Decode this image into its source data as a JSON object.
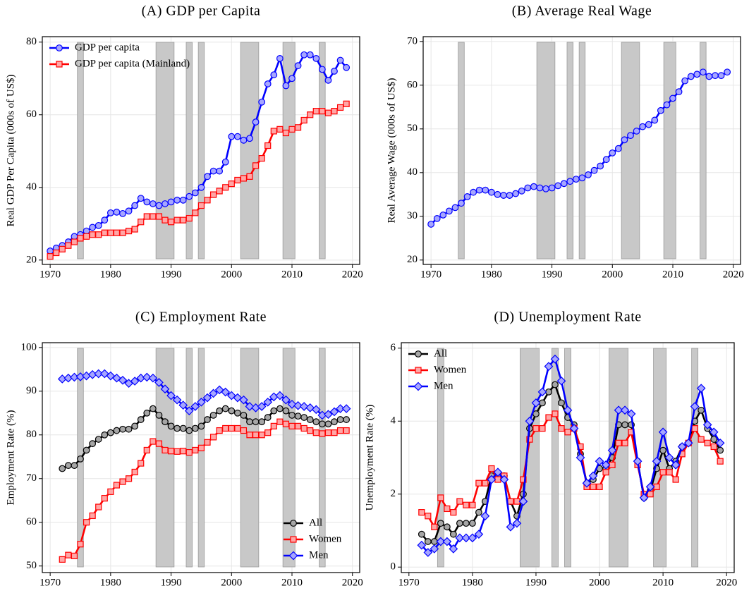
{
  "chart_data": [
    {
      "type": "line",
      "title": "(A) GDP per Capita",
      "y_label": "Real GDP Per Capita (000s of US$)",
      "xlim": [
        1968.7,
        2021.2
      ],
      "xticks": [
        1970,
        1980,
        1990,
        2000,
        2010,
        2020
      ],
      "ylim": [
        18.8,
        81.5
      ],
      "yticks": [
        20,
        40,
        60,
        80
      ],
      "grid": true,
      "legend": "upper left",
      "shading": [
        [
          1974.5,
          1975.5
        ],
        [
          1987.5,
          1990.5
        ],
        [
          1992.5,
          1993.5
        ],
        [
          1994.5,
          1995.5
        ],
        [
          2001.5,
          2004.5
        ],
        [
          2008.5,
          2010.5
        ],
        [
          2014.5,
          2015.5
        ]
      ],
      "x": [
        1970,
        1971,
        1972,
        1973,
        1974,
        1975,
        1976,
        1977,
        1978,
        1979,
        1980,
        1981,
        1982,
        1983,
        1984,
        1985,
        1986,
        1987,
        1988,
        1989,
        1990,
        1991,
        1992,
        1993,
        1994,
        1995,
        1996,
        1997,
        1998,
        1999,
        2000,
        2001,
        2002,
        2003,
        2004,
        2005,
        2006,
        2007,
        2008,
        2009,
        2010,
        2011,
        2012,
        2013,
        2014,
        2015,
        2016,
        2017,
        2018,
        2019
      ],
      "series": [
        {
          "name": "GDP per capita",
          "color": "#0000ff",
          "marker": "circle",
          "values": [
            22.5,
            23.3,
            24,
            25,
            26.5,
            27,
            28,
            29,
            29.5,
            31,
            33,
            33.2,
            32.8,
            33.5,
            35,
            37,
            36,
            35.5,
            35,
            35.5,
            36,
            36.5,
            36.5,
            37.5,
            38.5,
            40,
            43,
            44.5,
            44.5,
            47,
            54,
            54,
            53,
            53.5,
            58,
            63.5,
            68.5,
            71,
            75.5,
            68,
            70,
            73.5,
            76.5,
            76.5,
            75.5,
            72.5,
            69.5,
            72,
            75,
            73
          ]
        },
        {
          "name": "GDP per capita (Mainland)",
          "color": "#ff0000",
          "marker": "square",
          "values": [
            21,
            22,
            23,
            24,
            25,
            26,
            26.5,
            27,
            27,
            27.5,
            27.5,
            27.5,
            27.5,
            28,
            28.5,
            30.5,
            32,
            32,
            32,
            31,
            30.5,
            31,
            31,
            31.5,
            33,
            35,
            36.5,
            38,
            39,
            40,
            41,
            42,
            42.5,
            43,
            46,
            48,
            51.5,
            55.5,
            56,
            55,
            56,
            56.5,
            58.5,
            60,
            61,
            61,
            60.5,
            61,
            62,
            63
          ]
        }
      ]
    },
    {
      "type": "line",
      "title": "(B) Average Real Wage",
      "y_label": "Real Average Wage (000s of US$)",
      "xlim": [
        1968.7,
        2021.2
      ],
      "xticks": [
        1970,
        1980,
        1990,
        2000,
        2010,
        2020
      ],
      "ylim": [
        19.0,
        71.1
      ],
      "yticks": [
        20,
        30,
        40,
        50,
        60,
        70
      ],
      "grid": true,
      "shading": [
        [
          1974.5,
          1975.5
        ],
        [
          1987.5,
          1990.5
        ],
        [
          1992.5,
          1993.5
        ],
        [
          1994.5,
          1995.5
        ],
        [
          2001.5,
          2004.5
        ],
        [
          2008.5,
          2010.5
        ],
        [
          2014.5,
          2015.5
        ]
      ],
      "x": [
        1970,
        1971,
        1972,
        1973,
        1974,
        1975,
        1976,
        1977,
        1978,
        1979,
        1980,
        1981,
        1982,
        1983,
        1984,
        1985,
        1986,
        1987,
        1988,
        1989,
        1990,
        1991,
        1992,
        1993,
        1994,
        1995,
        1996,
        1997,
        1998,
        1999,
        2000,
        2001,
        2002,
        2003,
        2004,
        2005,
        2006,
        2007,
        2008,
        2009,
        2010,
        2011,
        2012,
        2013,
        2014,
        2015,
        2016,
        2017,
        2018,
        2019
      ],
      "series": [
        {
          "color": "#0000ff",
          "marker": "circle",
          "values": [
            28.2,
            29.5,
            30.3,
            31.2,
            32,
            33,
            34.5,
            35.5,
            36,
            36,
            35.5,
            35,
            34.8,
            34.8,
            35.2,
            35.8,
            36.5,
            36.8,
            36.5,
            36.3,
            36.5,
            37,
            37.5,
            38,
            38.5,
            38.8,
            39.5,
            40.5,
            41.5,
            43,
            44.5,
            45.5,
            47.5,
            48.5,
            49.5,
            50.5,
            51,
            52,
            54.2,
            55.5,
            57,
            58.5,
            61,
            62,
            62.5,
            63,
            62,
            62.2,
            62.2,
            63
          ]
        }
      ]
    },
    {
      "type": "line",
      "title": "(C) Employment Rate",
      "y_label": "Employment Rate (%)",
      "xlim": [
        1968.7,
        2021.2
      ],
      "xticks": [
        1970,
        1980,
        1990,
        2000,
        2010,
        2020
      ],
      "ylim": [
        48.5,
        101.1
      ],
      "yticks": [
        50,
        60,
        70,
        80,
        90,
        100
      ],
      "grid": true,
      "legend": "lower right",
      "shading": [
        [
          1974.5,
          1975.5
        ],
        [
          1987.5,
          1990.5
        ],
        [
          1992.5,
          1993.5
        ],
        [
          1994.5,
          1995.5
        ],
        [
          2001.5,
          2004.5
        ],
        [
          2008.5,
          2010.5
        ],
        [
          2014.5,
          2015.5
        ]
      ],
      "x": [
        1972,
        1973,
        1974,
        1975,
        1976,
        1977,
        1978,
        1979,
        1980,
        1981,
        1982,
        1983,
        1984,
        1985,
        1986,
        1987,
        1988,
        1989,
        1990,
        1991,
        1992,
        1993,
        1994,
        1995,
        1996,
        1997,
        1998,
        1999,
        2000,
        2001,
        2002,
        2003,
        2004,
        2005,
        2006,
        2007,
        2008,
        2009,
        2010,
        2011,
        2012,
        2013,
        2014,
        2015,
        2016,
        2017,
        2018,
        2019
      ],
      "series": [
        {
          "name": "All",
          "color": "#000000",
          "marker": "circle",
          "values": [
            72.3,
            73,
            73,
            74.5,
            76.5,
            78,
            79,
            80,
            80.5,
            81,
            81.3,
            81.3,
            82,
            83.5,
            85,
            86,
            84.5,
            83,
            82,
            81.5,
            81.5,
            81,
            81.5,
            82,
            83.5,
            84.5,
            85.5,
            86,
            85.5,
            85,
            84.5,
            83,
            83,
            83,
            84,
            85.5,
            86,
            85.5,
            84.5,
            84.3,
            84,
            83.5,
            83,
            82.5,
            82.5,
            83,
            83.5,
            83.5
          ]
        },
        {
          "name": "Women",
          "color": "#ff0000",
          "marker": "square",
          "values": [
            51.5,
            52.5,
            52.3,
            55,
            60,
            61.5,
            63.5,
            65.5,
            67,
            68.5,
            69.3,
            70,
            71.5,
            73.5,
            76.5,
            78.5,
            78,
            76.5,
            76.3,
            76.2,
            76.3,
            76,
            76.5,
            77,
            78.3,
            79.5,
            81,
            81.5,
            81.5,
            81.5,
            81,
            80,
            80,
            80,
            80.5,
            82,
            83,
            82.5,
            82,
            82,
            81.5,
            81,
            80.5,
            80.3,
            80.5,
            80.5,
            81,
            81
          ]
        },
        {
          "name": "Men",
          "color": "#0000ff",
          "marker": "diamond",
          "values": [
            92.8,
            93,
            93.2,
            93.3,
            93.5,
            93.8,
            94,
            94,
            93.5,
            93,
            92.5,
            91.8,
            92.3,
            93,
            93.2,
            93,
            92,
            90.5,
            89,
            88,
            86.8,
            85.5,
            86.5,
            87.5,
            88.5,
            89.5,
            90.3,
            89.8,
            89,
            88.5,
            88,
            86.5,
            86.2,
            86.5,
            87.5,
            88.7,
            89,
            88,
            87,
            86.7,
            86.5,
            86.2,
            85.8,
            84.5,
            84.7,
            85.3,
            86,
            86
          ]
        }
      ]
    },
    {
      "type": "line",
      "title": "(D) Unemployment Rate",
      "y_label": "Unemployment Rate (%)",
      "xlim": [
        1968.8,
        2021.2
      ],
      "xticks": [
        1970,
        1980,
        1990,
        2000,
        2010,
        2020
      ],
      "ylim": [
        -0.15,
        6.15
      ],
      "yticks": [
        0,
        2,
        4,
        6
      ],
      "grid": true,
      "legend": "upper left",
      "shading": [
        [
          1974.5,
          1975.5
        ],
        [
          1987.5,
          1990.5
        ],
        [
          1992.5,
          1993.5
        ],
        [
          1994.5,
          1995.5
        ],
        [
          2001.5,
          2004.5
        ],
        [
          2008.5,
          2010.5
        ],
        [
          2014.5,
          2015.5
        ]
      ],
      "x": [
        1972,
        1973,
        1974,
        1975,
        1976,
        1977,
        1978,
        1979,
        1980,
        1981,
        1982,
        1983,
        1984,
        1985,
        1986,
        1987,
        1988,
        1989,
        1990,
        1991,
        1992,
        1993,
        1994,
        1995,
        1996,
        1997,
        1998,
        1999,
        2000,
        2001,
        2002,
        2003,
        2004,
        2005,
        2006,
        2007,
        2008,
        2009,
        2010,
        2011,
        2012,
        2013,
        2014,
        2015,
        2016,
        2017,
        2018,
        2019
      ],
      "series": [
        {
          "name": "All",
          "color": "#000000",
          "marker": "circle",
          "values": [
            0.9,
            0.7,
            0.7,
            1.2,
            1.1,
            0.9,
            1.2,
            1.2,
            1.2,
            1.5,
            1.8,
            2.5,
            2.5,
            2.5,
            1.8,
            1.4,
            2,
            3.8,
            4.2,
            4.5,
            4.8,
            5,
            4.5,
            4.1,
            3.9,
            3.1,
            2.3,
            2.4,
            2.7,
            2.7,
            3,
            3.9,
            3.9,
            3.9,
            2.9,
            1.9,
            2.1,
            2.7,
            3.2,
            2.7,
            2.9,
            3.3,
            3.4,
            4,
            4.3,
            3.8,
            3.5,
            3.2
          ]
        },
        {
          "name": "Women",
          "color": "#ff0000",
          "marker": "square",
          "values": [
            1.5,
            1.4,
            1.1,
            1.9,
            1.6,
            1.5,
            1.8,
            1.7,
            1.7,
            2.3,
            2.3,
            2.7,
            2.4,
            2.5,
            1.8,
            1.8,
            2.4,
            3.5,
            3.8,
            3.8,
            4.1,
            4.2,
            3.8,
            3.7,
            3.8,
            3.3,
            2.2,
            2.2,
            2.2,
            2.6,
            2.8,
            3.4,
            3.4,
            3.7,
            2.8,
            2,
            2,
            2.2,
            2.6,
            2.6,
            2.4,
            3.1,
            3.4,
            3.8,
            3.5,
            3.4,
            3.3,
            2.9
          ]
        },
        {
          "name": "Men",
          "color": "#0000ff",
          "marker": "diamond",
          "values": [
            0.6,
            0.4,
            0.5,
            0.7,
            0.7,
            0.5,
            0.8,
            0.8,
            0.8,
            0.9,
            1.4,
            2.4,
            2.6,
            2.4,
            1.1,
            1.2,
            1.8,
            4,
            4.5,
            4.8,
            5.5,
            5.7,
            5.1,
            4.3,
            3.8,
            3,
            2.3,
            2.5,
            2.9,
            2.8,
            3.2,
            4.3,
            4.3,
            4.2,
            2.9,
            1.9,
            2.2,
            2.9,
            3.7,
            3,
            2.8,
            3.3,
            3.4,
            4.4,
            4.9,
            3.9,
            3.7,
            3.4
          ]
        }
      ]
    }
  ]
}
